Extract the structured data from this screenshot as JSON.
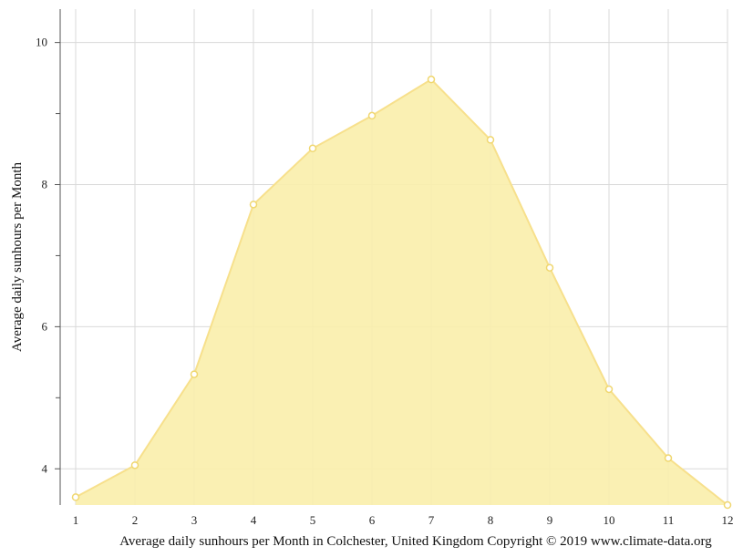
{
  "chart_data": {
    "type": "area",
    "title": "",
    "ylabel": "Average daily sunhours per Month",
    "caption": "Average daily sunhours per Month in Colchester, United Kingdom Copyright © 2019 www.climate-data.org",
    "x": [
      1,
      2,
      3,
      4,
      5,
      6,
      7,
      8,
      9,
      10,
      11,
      12
    ],
    "xtick_labels": [
      "1",
      "2",
      "3",
      "4",
      "5",
      "6",
      "7",
      "8",
      "9",
      "10",
      "11",
      "12"
    ],
    "values": [
      3.6,
      4.05,
      5.33,
      7.72,
      8.51,
      8.97,
      9.48,
      8.63,
      6.83,
      5.12,
      4.15,
      3.49
    ],
    "ylim": [
      3.49,
      10.47
    ],
    "yticks": [
      4,
      6,
      8,
      10
    ],
    "yticks_minor": [
      5,
      7,
      9
    ],
    "grid": true,
    "legend": "none",
    "colors": {
      "fill": "#faeeab",
      "line": "#f7e08c",
      "marker_fill": "#ffffff",
      "marker_stroke": "#f0d770",
      "grid": "#d9d9d9",
      "axis": "#555555"
    }
  }
}
